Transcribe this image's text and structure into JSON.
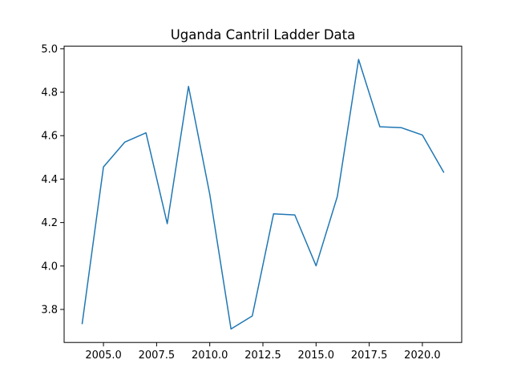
{
  "chart_data": {
    "type": "line",
    "title": "Uganda Cantril Ladder Data",
    "xlabel": "",
    "ylabel": "",
    "grid": false,
    "legend": "none",
    "xlim": [
      2003.15,
      2021.85
    ],
    "ylim": [
      3.648,
      5.012
    ],
    "x_ticks": [
      2005.0,
      2007.5,
      2010.0,
      2012.5,
      2015.0,
      2017.5,
      2020.0
    ],
    "x_tick_labels": [
      "2005.0",
      "2007.5",
      "2010.0",
      "2012.5",
      "2015.0",
      "2017.5",
      "2020.0"
    ],
    "y_ticks": [
      3.8,
      4.0,
      4.2,
      4.4,
      4.6,
      4.8,
      5.0
    ],
    "y_tick_labels": [
      "3.8",
      "4.0",
      "4.2",
      "4.4",
      "4.6",
      "4.8",
      "5.0"
    ],
    "series": [
      {
        "color": "#1f77b4",
        "x": [
          2004,
          2005,
          2006,
          2007,
          2008,
          2009,
          2010,
          2011,
          2012,
          2013,
          2014,
          2015,
          2016,
          2017,
          2018,
          2019,
          2020,
          2021
        ],
        "y": [
          3.735,
          4.456,
          4.57,
          4.613,
          4.195,
          4.827,
          4.33,
          3.71,
          3.77,
          4.24,
          4.235,
          4.001,
          4.32,
          4.951,
          4.641,
          4.637,
          4.603,
          4.432
        ]
      }
    ]
  }
}
